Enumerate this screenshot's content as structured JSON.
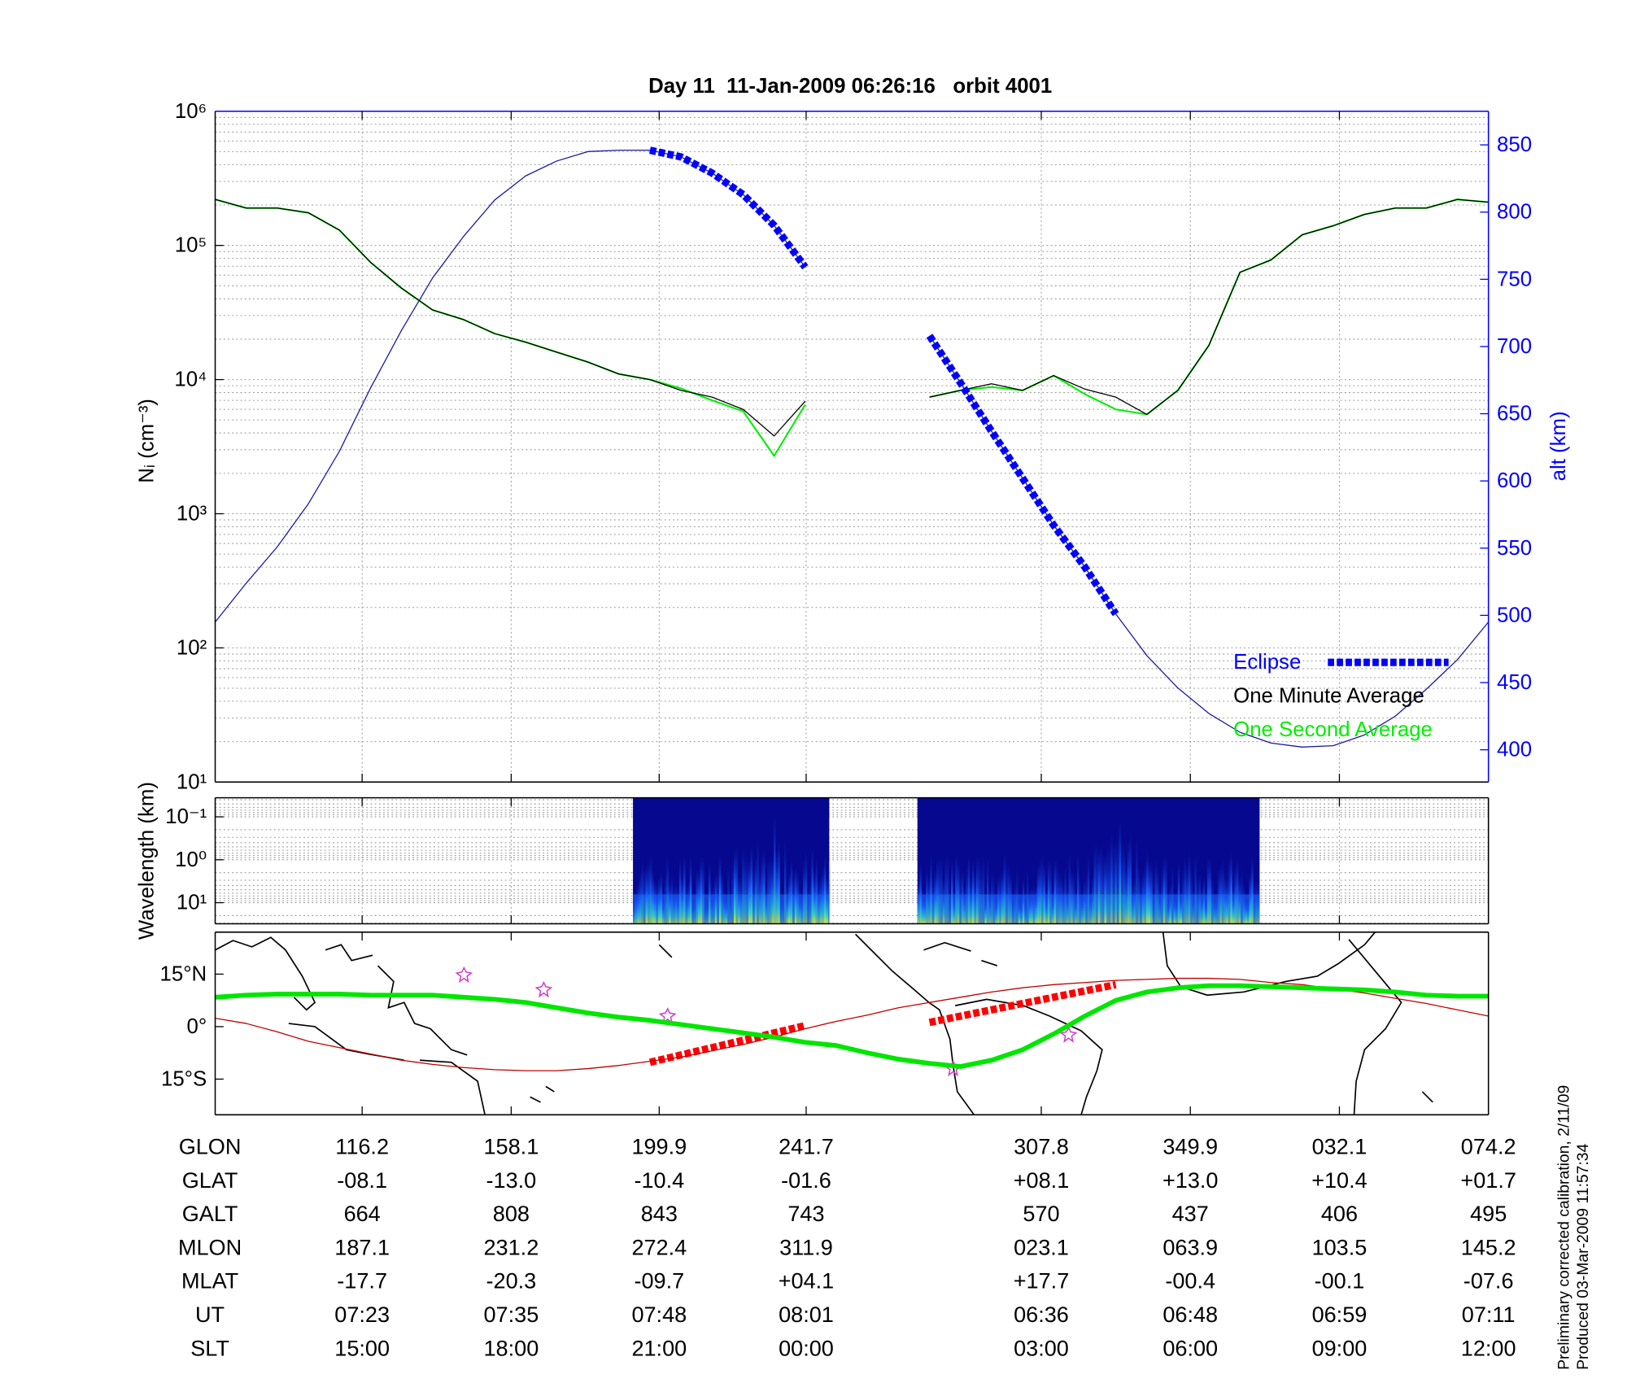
{
  "chart_data": [
    {
      "type": "line",
      "title": "Day 11  11-Jan-2009 06:26:16   orbit 4001",
      "ylabel": "Nᵢ (cm⁻³)",
      "y2label": "alt (km)",
      "ylog": true,
      "ylim": [
        10,
        1000000
      ],
      "yticks": [
        {
          "value": 10,
          "label": "10¹"
        },
        {
          "value": 100,
          "label": "10²"
        },
        {
          "value": 1000,
          "label": "10³"
        },
        {
          "value": 10000,
          "label": "10⁴"
        },
        {
          "value": 100000,
          "label": "10⁵"
        },
        {
          "value": 1000000,
          "label": "10⁶"
        }
      ],
      "y2lim": [
        376,
        875
      ],
      "y2ticks": [
        400,
        450,
        500,
        550,
        600,
        650,
        700,
        750,
        800,
        850
      ],
      "grid": true,
      "legend": "lower right",
      "series": [
        {
          "name": "Eclipse",
          "color": "#0000ff",
          "axis": "y2",
          "style": "dashed",
          "values": [
            null,
            null,
            null,
            null,
            null,
            null,
            null,
            null,
            null,
            null,
            null,
            null,
            null,
            null,
            846,
            841,
            829,
            813,
            790,
            759,
            null,
            null,
            null,
            708,
            673,
            637,
            602,
            567,
            536,
            501,
            null,
            null,
            null,
            null,
            null,
            null,
            null,
            null,
            null,
            null,
            null,
            null
          ]
        },
        {
          "name": "One Minute Average",
          "color": "#000000",
          "style": "thin",
          "values": [
            220000,
            190000,
            190000,
            175000,
            130000,
            75000,
            48000,
            33000,
            28000,
            22000,
            19000,
            16000,
            13500,
            11000,
            10000,
            8300,
            7400,
            6000,
            3800,
            6900,
            null,
            null,
            null,
            7400,
            8300,
            9300,
            8300,
            10700,
            8500,
            7400,
            5500,
            8300,
            18000,
            63000,
            78000,
            120000,
            140000,
            170000,
            190000,
            190000,
            220000,
            210000
          ]
        },
        {
          "name": "One Second Average",
          "color": "#00ee00",
          "style": "normal",
          "values": [
            220000,
            190000,
            190000,
            175000,
            130000,
            75000,
            48000,
            33000,
            28000,
            22000,
            19000,
            16000,
            13500,
            11000,
            10000,
            8600,
            7000,
            5800,
            2700,
            6500,
            null,
            null,
            null,
            7400,
            8300,
            8800,
            8300,
            10700,
            7800,
            6000,
            5500,
            8300,
            18000,
            63000,
            78000,
            120000,
            140000,
            170000,
            190000,
            190000,
            220000,
            210000
          ]
        },
        {
          "color": "#1a1aa0",
          "axis": "y2",
          "style": "thin",
          "values": [
            495,
            524,
            551,
            583,
            622,
            669,
            712,
            751,
            782,
            809,
            827,
            838,
            845,
            846,
            846,
            841,
            829,
            813,
            790,
            759,
            null,
            null,
            null,
            708,
            673,
            637,
            602,
            567,
            536,
            501,
            470,
            446,
            427,
            413,
            405,
            402,
            403,
            411,
            425,
            445,
            467,
            495
          ]
        }
      ]
    },
    {
      "type": "spectrogram",
      "ylabel": "Wavelength (km)",
      "ylog": true,
      "reverse": true,
      "ylim": [
        0.036,
        31
      ],
      "yticks": [
        {
          "value": 0.1,
          "label": "10⁻¹"
        },
        {
          "value": 1,
          "label": "10⁰"
        },
        {
          "value": 10,
          "label": "10¹"
        }
      ],
      "grid": true
    },
    {
      "type": "line",
      "ylim": [
        -25.2,
        27
      ],
      "yticks": [
        {
          "value": 15,
          "label": "15°N"
        },
        {
          "value": 0,
          "label": "0°"
        },
        {
          "value": -15,
          "label": "15°S"
        }
      ],
      "grid": false,
      "series": [
        {
          "color": "#00e600",
          "style": "thick",
          "values": [
            8.4,
            9,
            9.3,
            9.3,
            9.3,
            9,
            9,
            9,
            8.4,
            7.8,
            6.9,
            5.4,
            3.9,
            2.7,
            1.8,
            0.6,
            -0.6,
            -1.8,
            -3,
            -4.5,
            -5.4,
            -7.5,
            -9.3,
            -10.5,
            -11.4,
            -9.6,
            -6.6,
            -2.1,
            3,
            7.5,
            9.9,
            11.1,
            11.7,
            11.7,
            11.4,
            11.1,
            10.8,
            10.5,
            9.9,
            9,
            8.7,
            8.7
          ]
        },
        {
          "color": "#c00000",
          "style": "thin",
          "values": [
            2.4,
            0.9,
            -1.5,
            -4.2,
            -6,
            -7.8,
            -9.6,
            -10.8,
            -11.7,
            -12.3,
            -12.6,
            -12.6,
            -12,
            -11.1,
            -9.9,
            -8.7,
            -6.9,
            -5.1,
            -3,
            -0.6,
            1.5,
            3.3,
            5.4,
            6.9,
            8.4,
            9.9,
            11.1,
            12,
            12.6,
            13.2,
            13.5,
            13.8,
            13.8,
            13.5,
            12.6,
            12,
            10.8,
            9.6,
            8.1,
            6.6,
            4.8,
            3
          ]
        },
        {
          "color": "#ff0000",
          "style": "dashed",
          "values": [
            null,
            null,
            null,
            null,
            null,
            null,
            null,
            null,
            null,
            null,
            null,
            null,
            null,
            null,
            -10.2,
            -8.1,
            -6,
            -3.9,
            -1.8,
            0.3,
            null,
            null,
            null,
            1.2,
            3,
            4.8,
            6.6,
            8.4,
            10.2,
            12,
            null,
            null,
            null,
            null,
            null,
            null,
            null,
            null,
            null,
            null,
            null,
            null
          ]
        }
      ]
    }
  ],
  "table": {
    "rows": [
      {
        "label": "GLON",
        "cells": [
          "116.2",
          "158.1",
          "199.9",
          "241.7",
          "307.8",
          "349.9",
          "032.1",
          "074.2"
        ]
      },
      {
        "label": "GLAT",
        "cells": [
          "-08.1",
          "-13.0",
          "-10.4",
          "-01.6",
          "+08.1",
          "+13.0",
          "+10.4",
          "+01.7"
        ]
      },
      {
        "label": "GALT",
        "cells": [
          "664",
          "808",
          "843",
          "743",
          "570",
          "437",
          "406",
          "495"
        ]
      },
      {
        "label": "MLON",
        "cells": [
          "187.1",
          "231.2",
          "272.4",
          "311.9",
          "023.1",
          "063.9",
          "103.5",
          "145.2"
        ]
      },
      {
        "label": "MLAT",
        "cells": [
          "-17.7",
          "-20.3",
          "-09.7",
          "+04.1",
          "+17.7",
          "-00.4",
          "-00.1",
          "-07.6"
        ]
      },
      {
        "label": "UT",
        "cells": [
          "07:23",
          "07:35",
          "07:48",
          "08:01",
          "06:36",
          "06:48",
          "06:59",
          "07:11"
        ]
      },
      {
        "label": "SLT",
        "cells": [
          "15:00",
          "18:00",
          "21:00",
          "00:00",
          "03:00",
          "06:00",
          "09:00",
          "12:00"
        ]
      }
    ]
  },
  "footer": [
    "Preliminary corrected calibration, 2/11/09",
    "Produced 03-Mar-2009 11:57:34"
  ]
}
